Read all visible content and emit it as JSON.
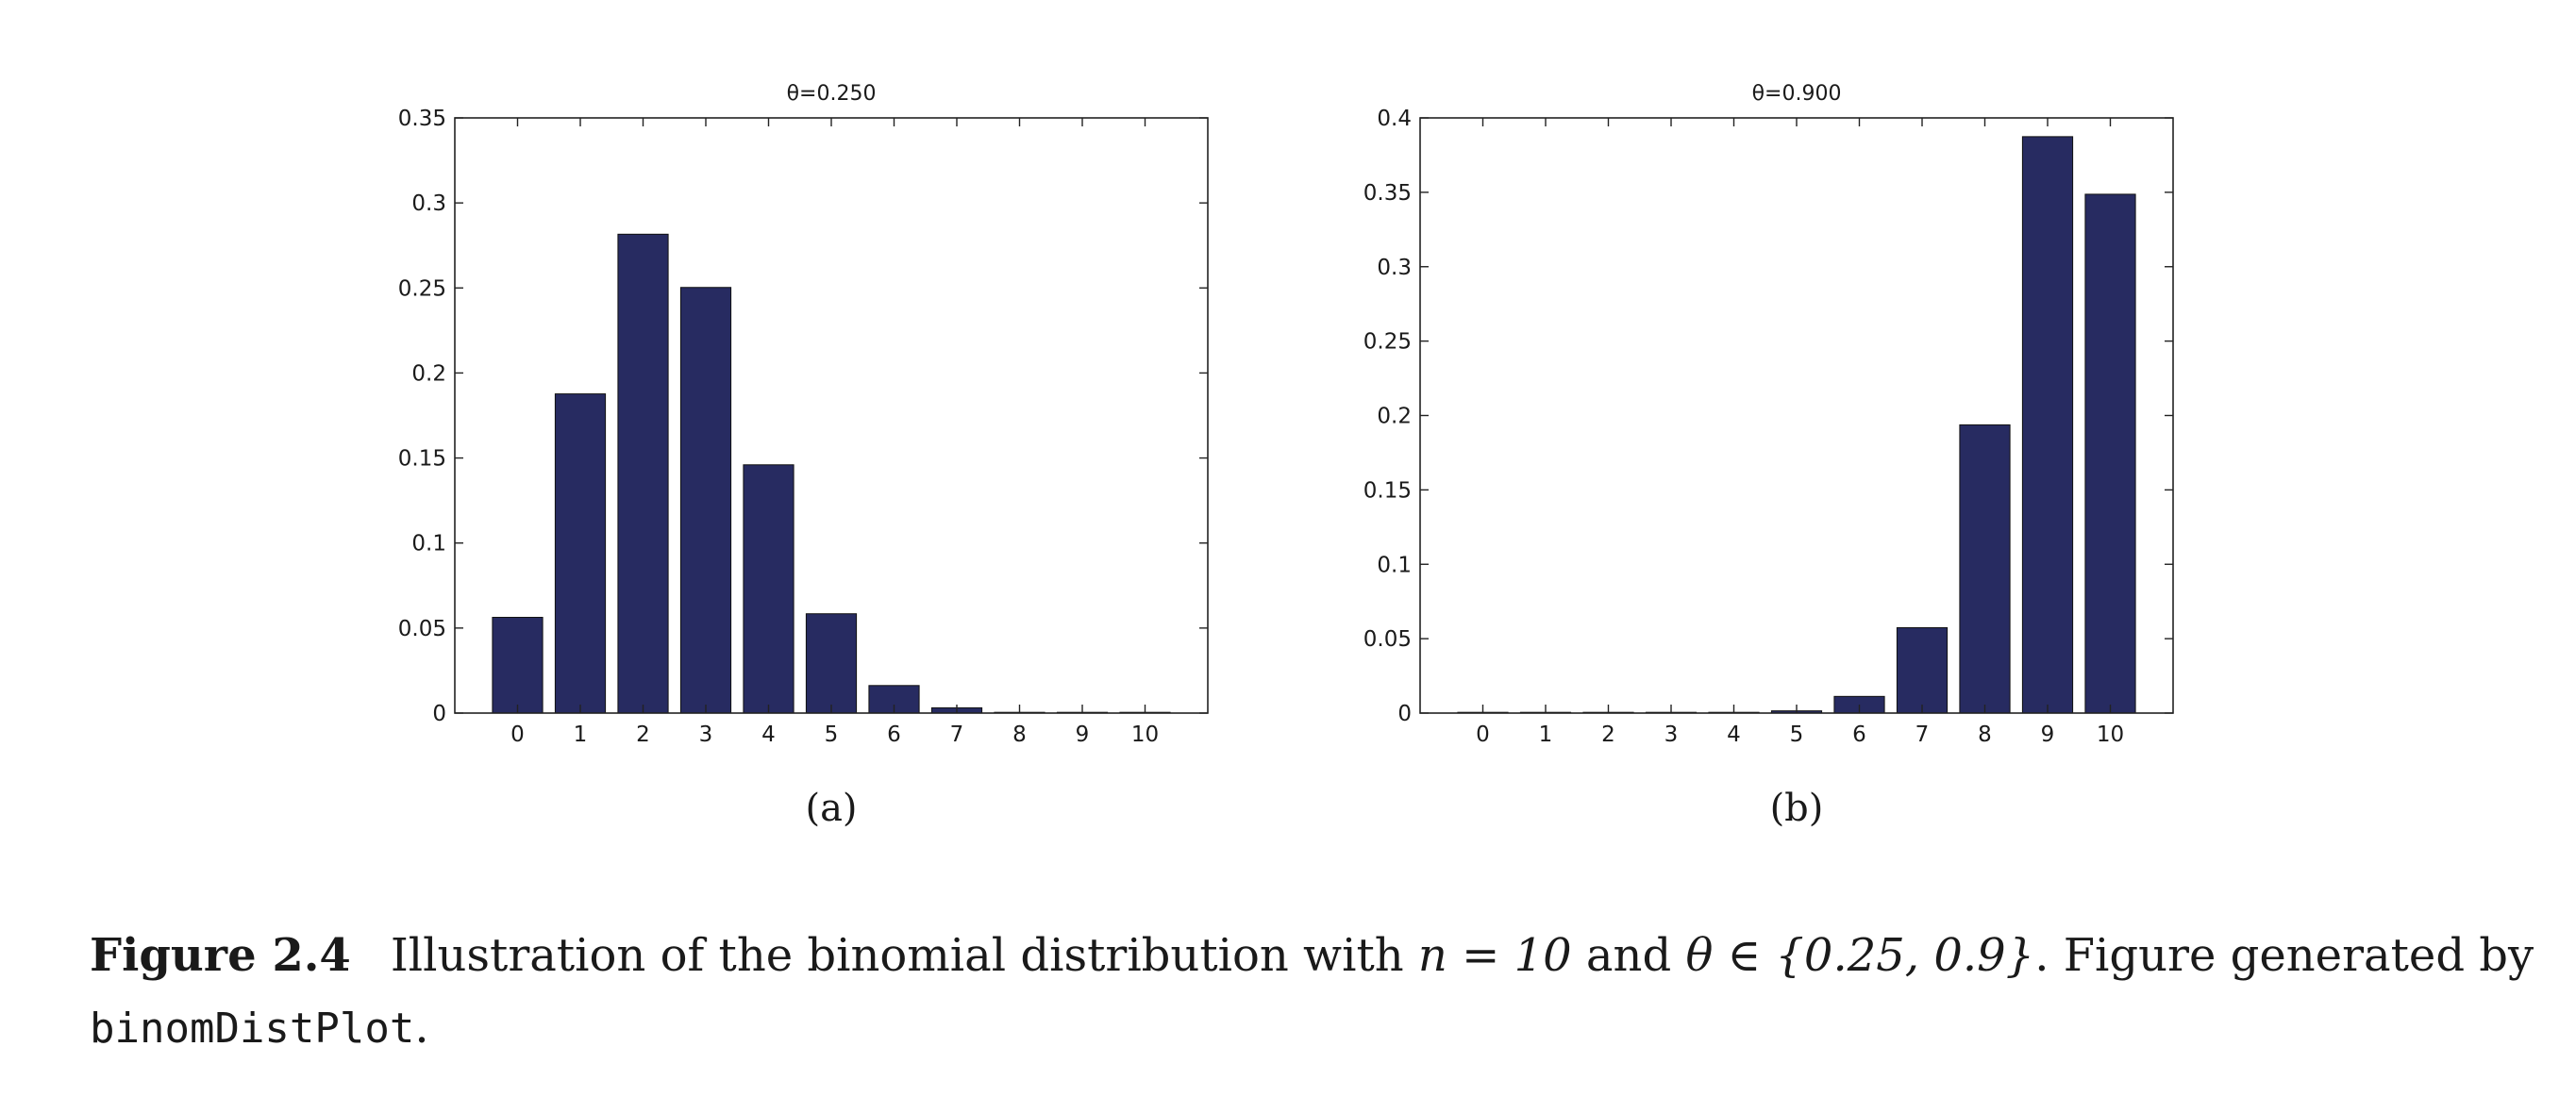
{
  "chart_data": [
    {
      "type": "bar",
      "title": "θ=0.250",
      "sublabel": "(a)",
      "categories": [
        "0",
        "1",
        "2",
        "3",
        "4",
        "5",
        "6",
        "7",
        "8",
        "9",
        "10"
      ],
      "values": [
        0.0563,
        0.1877,
        0.2816,
        0.2503,
        0.146,
        0.0584,
        0.0162,
        0.0031,
        0.0004,
        3e-05,
        1e-06
      ],
      "ylim": [
        0,
        0.35
      ],
      "yticks": [
        "0",
        "0.05",
        "0.1",
        "0.15",
        "0.2",
        "0.25",
        "0.3",
        "0.35"
      ],
      "ytick_values": [
        0,
        0.05,
        0.1,
        0.15,
        0.2,
        0.25,
        0.3,
        0.35
      ],
      "xlabel": "",
      "ylabel": "",
      "grid": false,
      "bar_color": "#272b61"
    },
    {
      "type": "bar",
      "title": "θ=0.900",
      "sublabel": "(b)",
      "categories": [
        "0",
        "1",
        "2",
        "3",
        "4",
        "5",
        "6",
        "7",
        "8",
        "9",
        "10"
      ],
      "values": [
        0.0,
        0.0,
        0.0,
        0.0,
        0.0001,
        0.0015,
        0.0112,
        0.0574,
        0.1937,
        0.3874,
        0.3487
      ],
      "ylim": [
        0,
        0.4
      ],
      "yticks": [
        "0",
        "0.05",
        "0.1",
        "0.15",
        "0.2",
        "0.25",
        "0.3",
        "0.35",
        "0.4"
      ],
      "ytick_values": [
        0,
        0.05,
        0.1,
        0.15,
        0.2,
        0.25,
        0.3,
        0.35,
        0.4
      ],
      "xlabel": "",
      "ylabel": "",
      "grid": false,
      "bar_color": "#272b61"
    }
  ],
  "caption": {
    "label": "Figure 2.4",
    "text_1": "Illustration of the binomial distribution with ",
    "math_1": "n = 10",
    "text_2": " and ",
    "math_2": "θ ∈ {0.25, 0.9}",
    "text_3": ". Figure generated by ",
    "code": "binomDistPlot",
    "text_4": "."
  }
}
